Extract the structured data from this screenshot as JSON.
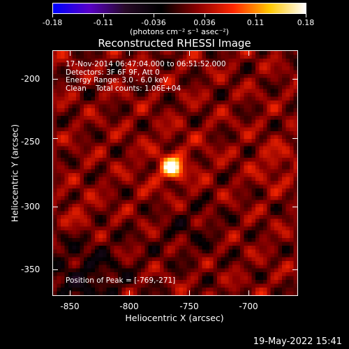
{
  "colorbar": {
    "ticks": [
      "-0.18",
      "-0.11",
      "-0.036",
      "0.036",
      "0.11",
      "0.18"
    ],
    "units": "(photons cm⁻² s⁻¹ asec⁻²)"
  },
  "title": "Reconstructed RHESSI Image",
  "annotations": {
    "line1": "17-Nov-2014 06:47:04.000 to 06:51:52.000",
    "line2": "Detectors: 3F 6F 9F, Att 0",
    "line3": "Energy Range: 3.0 - 6.0 keV",
    "line4": "Clean    Total counts: 1.06E+04",
    "peak": "Position of Peak = [-769,-271]"
  },
  "x_axis": {
    "label": "Heliocentric X (arcsec)",
    "ticks": [
      "-850",
      "-800",
      "-750",
      "-700"
    ]
  },
  "y_axis": {
    "label": "Heliocentric Y (arcsec)",
    "ticks": [
      "-200",
      "-250",
      "-300",
      "-350"
    ]
  },
  "timestamp": "19-May-2022 15:41",
  "colors": {
    "colormap": [
      "#0000ff",
      "#5a00c8",
      "#280a28",
      "#000000",
      "#8c0000",
      "#ff2800",
      "#ffc800",
      "#ffffff"
    ]
  }
}
